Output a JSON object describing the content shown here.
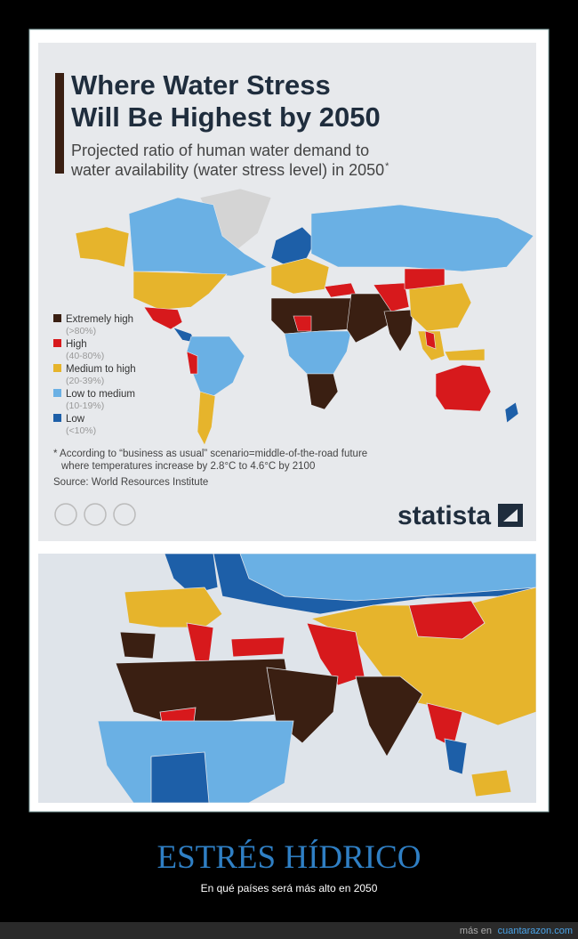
{
  "infographic": {
    "title_lines": [
      "Where Water Stress",
      "Will Be Highest by 2050"
    ],
    "subtitle_lines": [
      "Projected ratio of human water demand to",
      "water availability (water stress level) in 2050"
    ],
    "subtitle_mark": "*",
    "legend": [
      {
        "label": "Extremely high",
        "range": "(>80%)",
        "color": "#3a1f12"
      },
      {
        "label": "High",
        "range": "(40-80%)",
        "color": "#d7191c"
      },
      {
        "label": "Medium to high",
        "range": "(20-39%)",
        "color": "#e6b42c"
      },
      {
        "label": "Low to medium",
        "range": "(10-19%)",
        "color": "#6ab0e4"
      },
      {
        "label": "Low",
        "range": "(<10%)",
        "color": "#1d5fa8"
      }
    ],
    "footnote_lines": [
      "* According to “business as usual” scenario=middle-of-the-road future",
      "where temperatures increase by 2.8°C to 4.6°C by 2100"
    ],
    "source": "Source: World Resources Institute",
    "brand": "statista"
  },
  "caption": {
    "title": "ESTRÉS HÍDRICO",
    "subtitle": "En qué países será más alto en 2050"
  },
  "footer": {
    "prefix": "más en",
    "link": "cuantarazon.com"
  }
}
